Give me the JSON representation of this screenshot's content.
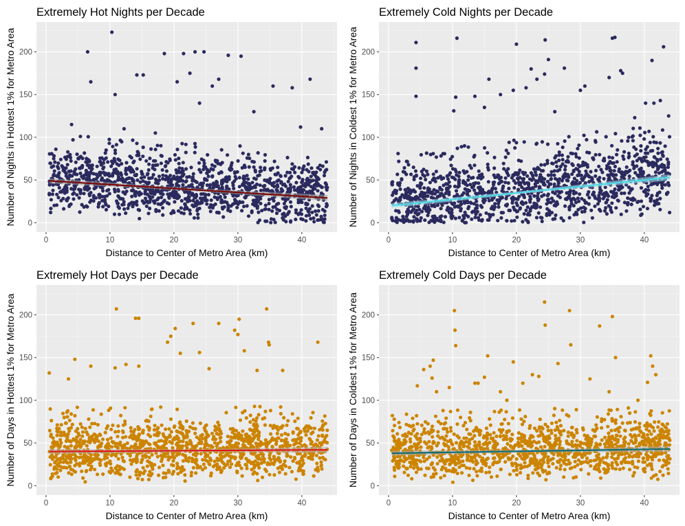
{
  "chart_data": [
    {
      "type": "scatter",
      "title": "Extremely Hot Nights per Decade",
      "xlabel": "Distance to Center of Metro Area (km)",
      "ylabel": "Number of Nights in Hottest 1% for Metro Area",
      "xlim": [
        -1.5,
        45.5
      ],
      "ylim": [
        -11,
        235
      ],
      "xticks": [
        0,
        10,
        20,
        30,
        40
      ],
      "yticks": [
        0,
        50,
        100,
        150,
        200
      ],
      "grid": true,
      "point_color": "#2b2a5e",
      "line_color": "#7a0a0a",
      "band_color": "#9e9e9e",
      "trend": {
        "x": [
          0.5,
          44
        ],
        "y": [
          49,
          29
        ]
      },
      "outliers": [
        [
          10.3,
          223
        ],
        [
          6.5,
          200
        ],
        [
          18.5,
          198
        ],
        [
          21.5,
          198
        ],
        [
          23.3,
          200
        ],
        [
          24.7,
          200
        ],
        [
          28.5,
          196
        ],
        [
          30.5,
          195
        ],
        [
          14.2,
          173
        ],
        [
          15.2,
          173
        ],
        [
          22.5,
          175
        ],
        [
          41.3,
          168
        ],
        [
          27,
          168
        ],
        [
          7,
          165
        ],
        [
          10.8,
          150
        ],
        [
          20.5,
          165
        ],
        [
          26,
          160
        ],
        [
          35.5,
          160
        ],
        [
          38.5,
          158
        ],
        [
          24,
          140
        ],
        [
          32.5,
          130
        ],
        [
          4,
          115
        ],
        [
          12.2,
          110
        ],
        [
          39.8,
          112
        ],
        [
          17.1,
          105
        ],
        [
          43.1,
          110
        ],
        [
          1.2,
          75
        ],
        [
          9.4,
          85
        ]
      ],
      "cloud": {
        "x_range": [
          0.5,
          44
        ],
        "y_start": 49,
        "y_end": 29,
        "spread": 21,
        "count": 1300,
        "seed": 11
      }
    },
    {
      "type": "scatter",
      "title": "Extremely Cold Nights per Decade",
      "xlabel": "Distance to Center of Metro Area (km)",
      "ylabel": "Number of Nights in Coldest 1% for Metro Area",
      "xlim": [
        -1.5,
        45.5
      ],
      "ylim": [
        -11,
        235
      ],
      "xticks": [
        0,
        10,
        20,
        30,
        40
      ],
      "yticks": [
        0,
        50,
        100,
        150,
        200
      ],
      "grid": true,
      "point_color": "#2b2a5e",
      "line_color": "#4fd8e8",
      "band_color": "#a6e3ea",
      "trend": {
        "x": [
          0.5,
          44
        ],
        "y": [
          20,
          53
        ]
      },
      "outliers": [
        [
          4.3,
          211
        ],
        [
          10.7,
          216
        ],
        [
          20,
          209
        ],
        [
          24.5,
          214
        ],
        [
          35,
          216
        ],
        [
          35.4,
          217
        ],
        [
          43,
          206
        ],
        [
          41.2,
          190
        ],
        [
          25,
          191
        ],
        [
          4.3,
          181
        ],
        [
          27.5,
          181
        ],
        [
          22.3,
          180
        ],
        [
          36.3,
          178
        ],
        [
          36.6,
          175
        ],
        [
          15.7,
          168
        ],
        [
          23.2,
          168
        ],
        [
          24.4,
          174
        ],
        [
          34.5,
          170
        ],
        [
          4.3,
          148
        ],
        [
          10.5,
          147
        ],
        [
          13.5,
          148
        ],
        [
          17.5,
          150
        ],
        [
          19.5,
          155
        ],
        [
          21.5,
          158
        ],
        [
          30,
          155
        ],
        [
          30.7,
          160
        ],
        [
          40.2,
          140
        ],
        [
          42.5,
          143
        ],
        [
          10.2,
          131
        ],
        [
          15,
          135
        ],
        [
          26,
          130
        ],
        [
          38.5,
          123
        ],
        [
          41.5,
          140
        ],
        [
          43.8,
          125
        ]
      ],
      "cloud": {
        "x_range": [
          0.5,
          44
        ],
        "y_start": 20,
        "y_end": 53,
        "spread": 24,
        "count": 1300,
        "seed": 23
      }
    },
    {
      "type": "scatter",
      "title": "Extremely Hot Days per Decade",
      "xlabel": "Distance to Center of Metro Area (km)",
      "ylabel": "Number of Days in Hottest 1% for Metro Area",
      "xlim": [
        -1.5,
        45.5
      ],
      "ylim": [
        -11,
        235
      ],
      "xticks": [
        0,
        10,
        20,
        30,
        40
      ],
      "yticks": [
        0,
        50,
        100,
        150,
        200
      ],
      "grid": true,
      "point_color": "#cc8400",
      "line_color": "#e01818",
      "band_color": "#b0b0b0",
      "trend": {
        "x": [
          0.5,
          44
        ],
        "y": [
          40,
          42
        ]
      },
      "outliers": [
        [
          11,
          207
        ],
        [
          34.5,
          207
        ],
        [
          14,
          196
        ],
        [
          14.5,
          196
        ],
        [
          23,
          190
        ],
        [
          27,
          190
        ],
        [
          30.2,
          195
        ],
        [
          20.2,
          184
        ],
        [
          19.5,
          175
        ],
        [
          29.5,
          182
        ],
        [
          30,
          177
        ],
        [
          34.8,
          168
        ],
        [
          34.9,
          165
        ],
        [
          42.5,
          168
        ],
        [
          24,
          156
        ],
        [
          31,
          158
        ],
        [
          12.5,
          142
        ],
        [
          14.5,
          140
        ],
        [
          25.5,
          137
        ],
        [
          0.5,
          132
        ],
        [
          10.8,
          138
        ],
        [
          19,
          168
        ],
        [
          21,
          155
        ],
        [
          37,
          135
        ],
        [
          4.5,
          148
        ],
        [
          7,
          140
        ],
        [
          3.5,
          125
        ],
        [
          33,
          135
        ]
      ],
      "cloud": {
        "x_range": [
          0.5,
          44
        ],
        "y_start": 40,
        "y_end": 42,
        "spread": 20,
        "count": 1300,
        "seed": 37
      }
    },
    {
      "type": "scatter",
      "title": "Extremely Cold Days per Decade",
      "xlabel": "Distance to Center of Metro Area (km)",
      "ylabel": "Number of Days in Coldest 1% for Metro Area",
      "xlim": [
        -1.5,
        45.5
      ],
      "ylim": [
        -11,
        235
      ],
      "xticks": [
        0,
        10,
        20,
        30,
        40
      ],
      "yticks": [
        0,
        50,
        100,
        150,
        200
      ],
      "grid": true,
      "point_color": "#cc8400",
      "line_color": "#0f6e78",
      "band_color": "#a8a8a8",
      "trend": {
        "x": [
          0.5,
          44
        ],
        "y": [
          38,
          43
        ]
      },
      "outliers": [
        [
          24.4,
          215
        ],
        [
          10.3,
          205
        ],
        [
          28.3,
          205
        ],
        [
          24.5,
          188
        ],
        [
          33,
          187
        ],
        [
          35,
          198
        ],
        [
          10.4,
          182
        ],
        [
          10.5,
          164
        ],
        [
          28.5,
          165
        ],
        [
          15.5,
          152
        ],
        [
          41,
          152
        ],
        [
          7,
          147
        ],
        [
          6.5,
          140
        ],
        [
          5.5,
          136
        ],
        [
          6.8,
          126
        ],
        [
          13.5,
          120
        ],
        [
          14,
          120
        ],
        [
          15,
          127
        ],
        [
          19.5,
          145
        ],
        [
          22.5,
          130
        ],
        [
          23.5,
          128
        ],
        [
          26.5,
          143
        ],
        [
          21,
          120
        ],
        [
          17.5,
          110
        ],
        [
          41.3,
          140
        ],
        [
          41.8,
          130
        ],
        [
          40.5,
          121
        ],
        [
          35.5,
          150
        ],
        [
          31.5,
          125
        ],
        [
          34.5,
          110
        ],
        [
          7.5,
          110
        ],
        [
          9.5,
          115
        ],
        [
          4.5,
          117
        ],
        [
          18.5,
          100
        ],
        [
          39,
          100
        ]
      ],
      "cloud": {
        "x_range": [
          0.5,
          44
        ],
        "y_start": 38,
        "y_end": 43,
        "spread": 19,
        "count": 1300,
        "seed": 53
      }
    }
  ]
}
